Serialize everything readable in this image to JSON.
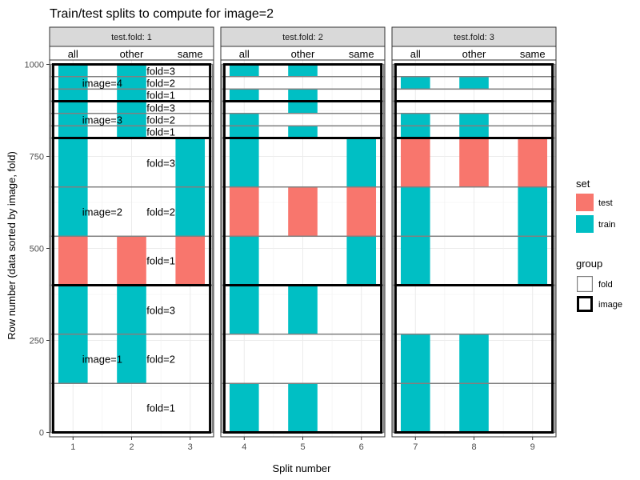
{
  "chart_data": {
    "type": "faceted-rect",
    "title": "Train/test splits to compute for image=2",
    "xlabel": "Split number",
    "ylabel": "Row number (data sorted by image, fold)",
    "ylim": [
      -12,
      1012
    ],
    "y_ticks": [
      0,
      250,
      500,
      750,
      1000
    ],
    "grid": true,
    "legend_placement": "right",
    "facet_label_prefix": "test.fold: ",
    "facets": [
      {
        "label": "test.fold: 1",
        "xlim": [
          0.6,
          3.4
        ],
        "splits": [
          1,
          2,
          3
        ],
        "subsets": [
          "all",
          "other",
          "same"
        ]
      },
      {
        "label": "test.fold: 2",
        "xlim": [
          3.6,
          6.4
        ],
        "splits": [
          4,
          5,
          6
        ],
        "subsets": [
          "all",
          "other",
          "same"
        ]
      },
      {
        "label": "test.fold: 3",
        "xlim": [
          6.6,
          9.4
        ],
        "splits": [
          7,
          8,
          9
        ],
        "subsets": [
          "all",
          "other",
          "same"
        ]
      }
    ],
    "set_legend": {
      "title": "set",
      "items": [
        {
          "name": "test",
          "color": "#F8766D"
        },
        {
          "name": "train",
          "color": "#00BFC4"
        }
      ]
    },
    "group_legend": {
      "title": "group",
      "items": [
        {
          "name": "fold",
          "line": "#808080",
          "width": 1.2
        },
        {
          "name": "image",
          "line": "#000000",
          "width": 3
        }
      ]
    },
    "image_blocks": [
      {
        "label": "image=1",
        "ymin": 0,
        "ymax": 400
      },
      {
        "label": "image=2",
        "ymin": 400,
        "ymax": 800
      },
      {
        "label": "image=3",
        "ymin": 800,
        "ymax": 900
      },
      {
        "label": "image=4",
        "ymin": 900,
        "ymax": 1000
      }
    ],
    "fold_blocks": [
      {
        "image": 1,
        "label": "fold=1",
        "ymin": 0,
        "ymax": 133
      },
      {
        "image": 1,
        "label": "fold=2",
        "ymin": 133,
        "ymax": 267
      },
      {
        "image": 1,
        "label": "fold=3",
        "ymin": 267,
        "ymax": 400
      },
      {
        "image": 2,
        "label": "fold=1",
        "ymin": 400,
        "ymax": 533
      },
      {
        "image": 2,
        "label": "fold=2",
        "ymin": 533,
        "ymax": 667
      },
      {
        "image": 2,
        "label": "fold=3",
        "ymin": 667,
        "ymax": 800
      },
      {
        "image": 3,
        "label": "fold=1",
        "ymin": 800,
        "ymax": 833
      },
      {
        "image": 3,
        "label": "fold=2",
        "ymin": 833,
        "ymax": 867
      },
      {
        "image": 3,
        "label": "fold=3",
        "ymin": 867,
        "ymax": 900
      },
      {
        "image": 4,
        "label": "fold=1",
        "ymin": 900,
        "ymax": 933
      },
      {
        "image": 4,
        "label": "fold=2",
        "ymin": 933,
        "ymax": 967
      },
      {
        "image": 4,
        "label": "fold=3",
        "ymin": 967,
        "ymax": 1000
      }
    ],
    "annotations": [
      {
        "text": "image=4",
        "x": 1.5,
        "y": 950
      },
      {
        "text": "fold=3",
        "x": 2.5,
        "y": 983
      },
      {
        "text": "fold=2",
        "x": 2.5,
        "y": 950
      },
      {
        "text": "fold=1",
        "x": 2.5,
        "y": 917
      },
      {
        "text": "image=3",
        "x": 1.5,
        "y": 850
      },
      {
        "text": "fold=3",
        "x": 2.5,
        "y": 883
      },
      {
        "text": "fold=2",
        "x": 2.5,
        "y": 850
      },
      {
        "text": "fold=1",
        "x": 2.5,
        "y": 817
      },
      {
        "text": "image=2",
        "x": 1.5,
        "y": 600
      },
      {
        "text": "fold=3",
        "x": 2.5,
        "y": 733
      },
      {
        "text": "fold=2",
        "x": 2.5,
        "y": 600
      },
      {
        "text": "fold=1",
        "x": 2.5,
        "y": 467
      },
      {
        "text": "image=1",
        "x": 1.5,
        "y": 200
      },
      {
        "text": "fold=3",
        "x": 2.5,
        "y": 333
      },
      {
        "text": "fold=2",
        "x": 2.5,
        "y": 200
      },
      {
        "text": "fold=1",
        "x": 2.5,
        "y": 67
      }
    ],
    "bars": [
      {
        "split": 1,
        "set": "train",
        "ymin": 900,
        "ymax": 1000
      },
      {
        "split": 1,
        "set": "train",
        "ymin": 800,
        "ymax": 900
      },
      {
        "split": 1,
        "set": "train",
        "ymin": 533,
        "ymax": 800
      },
      {
        "split": 1,
        "set": "test",
        "ymin": 400,
        "ymax": 533
      },
      {
        "split": 1,
        "set": "train",
        "ymin": 133,
        "ymax": 400
      },
      {
        "split": 2,
        "set": "train",
        "ymin": 900,
        "ymax": 1000
      },
      {
        "split": 2,
        "set": "train",
        "ymin": 800,
        "ymax": 900
      },
      {
        "split": 2,
        "set": "test",
        "ymin": 400,
        "ymax": 533
      },
      {
        "split": 2,
        "set": "train",
        "ymin": 133,
        "ymax": 400
      },
      {
        "split": 3,
        "set": "train",
        "ymin": 533,
        "ymax": 800
      },
      {
        "split": 3,
        "set": "test",
        "ymin": 400,
        "ymax": 533
      },
      {
        "split": 4,
        "set": "train",
        "ymin": 967,
        "ymax": 1000
      },
      {
        "split": 4,
        "set": "train",
        "ymin": 900,
        "ymax": 933
      },
      {
        "split": 4,
        "set": "train",
        "ymin": 667,
        "ymax": 867
      },
      {
        "split": 4,
        "set": "test",
        "ymin": 533,
        "ymax": 667
      },
      {
        "split": 4,
        "set": "train",
        "ymin": 267,
        "ymax": 533
      },
      {
        "split": 4,
        "set": "train",
        "ymin": 0,
        "ymax": 133
      },
      {
        "split": 5,
        "set": "train",
        "ymin": 967,
        "ymax": 1000
      },
      {
        "split": 5,
        "set": "train",
        "ymin": 867,
        "ymax": 933
      },
      {
        "split": 5,
        "set": "train",
        "ymin": 800,
        "ymax": 833
      },
      {
        "split": 5,
        "set": "test",
        "ymin": 533,
        "ymax": 667
      },
      {
        "split": 5,
        "set": "train",
        "ymin": 267,
        "ymax": 400
      },
      {
        "split": 5,
        "set": "train",
        "ymin": 0,
        "ymax": 133
      },
      {
        "split": 6,
        "set": "train",
        "ymin": 667,
        "ymax": 800
      },
      {
        "split": 6,
        "set": "test",
        "ymin": 533,
        "ymax": 667
      },
      {
        "split": 6,
        "set": "train",
        "ymin": 400,
        "ymax": 533
      },
      {
        "split": 7,
        "set": "train",
        "ymin": 933,
        "ymax": 967
      },
      {
        "split": 7,
        "set": "train",
        "ymin": 800,
        "ymax": 867
      },
      {
        "split": 7,
        "set": "test",
        "ymin": 667,
        "ymax": 800
      },
      {
        "split": 7,
        "set": "train",
        "ymin": 400,
        "ymax": 667
      },
      {
        "split": 7,
        "set": "train",
        "ymin": 0,
        "ymax": 267
      },
      {
        "split": 8,
        "set": "train",
        "ymin": 933,
        "ymax": 967
      },
      {
        "split": 8,
        "set": "train",
        "ymin": 800,
        "ymax": 867
      },
      {
        "split": 8,
        "set": "test",
        "ymin": 667,
        "ymax": 800
      },
      {
        "split": 8,
        "set": "train",
        "ymin": 0,
        "ymax": 267
      },
      {
        "split": 9,
        "set": "test",
        "ymin": 667,
        "ymax": 800
      },
      {
        "split": 9,
        "set": "train",
        "ymin": 400,
        "ymax": 667
      }
    ]
  }
}
